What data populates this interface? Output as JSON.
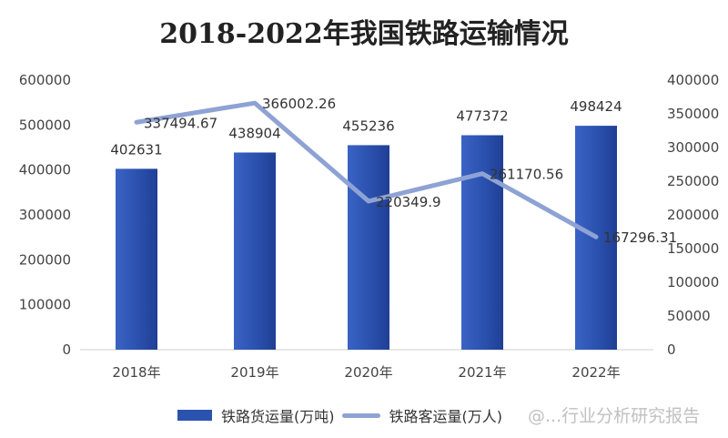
{
  "chart_data": {
    "type": "bar+line",
    "title": "2018-2022年我国铁路运输情况",
    "categories": [
      "2018年",
      "2019年",
      "2020年",
      "2021年",
      "2022年"
    ],
    "series": [
      {
        "name": "铁路货运量(万吨)",
        "type": "bar",
        "axis": "left",
        "values": [
          402631,
          438904,
          455236,
          477372,
          498424
        ],
        "labels": [
          "402631",
          "438904",
          "455236",
          "477372",
          "498424"
        ],
        "color": "#2c52b0"
      },
      {
        "name": "铁路客运量(万人)",
        "type": "line",
        "axis": "right",
        "values": [
          337494.67,
          366002.26,
          220349.9,
          261170.56,
          167296.31
        ],
        "labels": [
          "337494.67",
          "366002.26",
          "220349.9",
          "261170.56",
          "167296.31"
        ],
        "color": "#8ea3d4"
      }
    ],
    "ylim_left": [
      0,
      600000
    ],
    "yticks_left": [
      "0",
      "100000",
      "200000",
      "300000",
      "400000",
      "500000",
      "600000"
    ],
    "ylim_right": [
      0,
      400000
    ],
    "yticks_right": [
      "0",
      "50000",
      "100000",
      "150000",
      "200000",
      "250000",
      "300000",
      "350000",
      "400000"
    ],
    "grid": false,
    "legend": "bottom"
  },
  "watermark": "@...行业分析研究报告"
}
